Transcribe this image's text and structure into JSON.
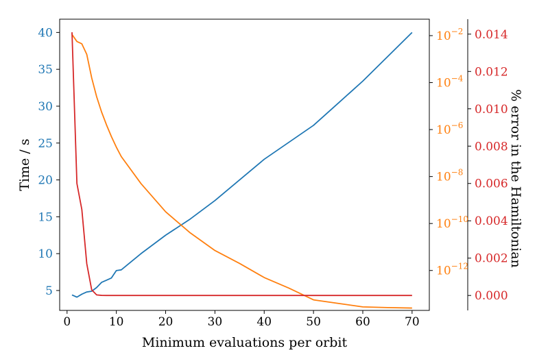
{
  "chart_data": {
    "type": "line",
    "xlabel": "Minimum evaluations per orbit",
    "ylabel_left": "Time / s",
    "ylabel_right": "% error in the Hamiltonian",
    "xlim": [
      -1.5,
      73.5
    ],
    "x_ticks": [
      0,
      10,
      20,
      30,
      40,
      50,
      60,
      70
    ],
    "axes": {
      "time": {
        "lim": [
          2.3,
          41.8
        ],
        "ticks": [
          5,
          10,
          15,
          20,
          25,
          30,
          35,
          40
        ],
        "color": "#1f77b4",
        "scale": "linear"
      },
      "log_error": {
        "lim": [
          -13.7,
          -1.3
        ],
        "ticks": [
          -12,
          -10,
          -8,
          -6,
          -4,
          -2
        ],
        "tick_base": "10",
        "color": "#ff7f0e",
        "scale": "log"
      },
      "pct_error": {
        "lim": [
          -0.0008,
          0.0148
        ],
        "ticks": [
          0.0,
          0.002,
          0.004,
          0.006,
          0.008,
          0.01,
          0.012,
          0.014
        ],
        "color": "#d62728",
        "scale": "linear"
      }
    },
    "series": [
      {
        "axis": "time",
        "color": "#1f77b4",
        "points": [
          [
            1,
            4.4
          ],
          [
            2,
            4.1
          ],
          [
            3,
            4.5
          ],
          [
            4,
            4.8
          ],
          [
            5,
            4.9
          ],
          [
            6,
            5.4
          ],
          [
            7,
            6.1
          ],
          [
            8,
            6.4
          ],
          [
            9,
            6.7
          ],
          [
            10,
            7.7
          ],
          [
            11,
            7.8
          ],
          [
            15,
            10.0
          ],
          [
            20,
            12.5
          ],
          [
            25,
            14.7
          ],
          [
            30,
            17.2
          ],
          [
            35,
            20.0
          ],
          [
            40,
            22.8
          ],
          [
            45,
            25.1
          ],
          [
            50,
            27.4
          ],
          [
            55,
            30.4
          ],
          [
            60,
            33.4
          ],
          [
            65,
            36.7
          ],
          [
            70,
            40.0
          ]
        ]
      },
      {
        "axis": "log_error",
        "color": "#ff7f0e",
        "points": [
          [
            1,
            -1.95
          ],
          [
            2,
            -2.25
          ],
          [
            3,
            -2.35
          ],
          [
            4,
            -2.8
          ],
          [
            5,
            -3.8
          ],
          [
            6,
            -4.6
          ],
          [
            7,
            -5.25
          ],
          [
            8,
            -5.8
          ],
          [
            9,
            -6.3
          ],
          [
            10,
            -6.75
          ],
          [
            11,
            -7.15
          ],
          [
            15,
            -8.3
          ],
          [
            20,
            -9.5
          ],
          [
            25,
            -10.4
          ],
          [
            30,
            -11.15
          ],
          [
            35,
            -11.7
          ],
          [
            40,
            -12.3
          ],
          [
            45,
            -12.75
          ],
          [
            50,
            -13.25
          ],
          [
            55,
            -13.4
          ],
          [
            60,
            -13.55
          ],
          [
            65,
            -13.58
          ],
          [
            70,
            -13.6
          ]
        ]
      },
      {
        "axis": "pct_error",
        "color": "#d62728",
        "points": [
          [
            1,
            0.0141
          ],
          [
            2,
            0.006
          ],
          [
            3,
            0.0046
          ],
          [
            4,
            0.0017
          ],
          [
            5,
            0.0003
          ],
          [
            6,
            3e-05
          ],
          [
            7,
            5e-06
          ],
          [
            8,
            0.0
          ],
          [
            10,
            0.0
          ],
          [
            20,
            0.0
          ],
          [
            30,
            0.0
          ],
          [
            40,
            0.0
          ],
          [
            50,
            0.0
          ],
          [
            60,
            0.0
          ],
          [
            70,
            0.0
          ]
        ]
      }
    ]
  }
}
